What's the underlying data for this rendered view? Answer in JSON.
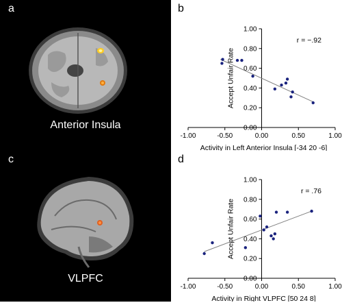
{
  "panels": {
    "a": {
      "label": "a",
      "caption": "Anterior Insula"
    },
    "b": {
      "label": "b"
    },
    "c": {
      "label": "c",
      "caption": "VLPFC"
    },
    "d": {
      "label": "d"
    }
  },
  "colors": {
    "background": "#000000",
    "activation_hot": "#ffcc22",
    "activation_warm": "#e07a10",
    "point": "#1a237e",
    "line": "#808080"
  },
  "chart_data": [
    {
      "type": "scatter",
      "title": "",
      "xlabel": "Activity in Left Anterior Insula [-34 20 -6]",
      "ylabel": "Accept Unfair Rate",
      "xlim": [
        -1.0,
        1.0
      ],
      "ylim": [
        0.0,
        1.0
      ],
      "xticks": [
        "-1.00",
        "-0.50",
        "0.00",
        "0.50",
        "1.00"
      ],
      "yticks": [
        "0.00",
        "0.20",
        "0.40",
        "0.60",
        "0.80",
        "1.00"
      ],
      "annotation": "r = −.92",
      "grid": false,
      "points": [
        {
          "x": -0.54,
          "y": 0.65
        },
        {
          "x": -0.53,
          "y": 0.69
        },
        {
          "x": -0.33,
          "y": 0.68
        },
        {
          "x": -0.27,
          "y": 0.68
        },
        {
          "x": -0.12,
          "y": 0.52
        },
        {
          "x": 0.18,
          "y": 0.39
        },
        {
          "x": 0.27,
          "y": 0.43
        },
        {
          "x": 0.33,
          "y": 0.45
        },
        {
          "x": 0.35,
          "y": 0.49
        },
        {
          "x": 0.4,
          "y": 0.31
        },
        {
          "x": 0.42,
          "y": 0.36
        },
        {
          "x": 0.7,
          "y": 0.25
        }
      ],
      "fit_line": {
        "x": [
          -0.56,
          0.7
        ],
        "y": [
          0.69,
          0.26
        ]
      }
    },
    {
      "type": "scatter",
      "title": "",
      "xlabel": "Activity in Right VLPFC [50 24 8]",
      "ylabel": "Accept Unfair Rate",
      "xlim": [
        -1.0,
        1.0
      ],
      "ylim": [
        0.0,
        1.0
      ],
      "xticks": [
        "-1.00",
        "-0.50",
        "0.00",
        "0.50",
        "1.00"
      ],
      "yticks": [
        "0.00",
        "0.20",
        "0.40",
        "0.60",
        "0.80",
        "1.00"
      ],
      "annotation": "r = .76",
      "grid": false,
      "points": [
        {
          "x": -0.78,
          "y": 0.25
        },
        {
          "x": -0.67,
          "y": 0.36
        },
        {
          "x": -0.02,
          "y": 0.63
        },
        {
          "x": 0.03,
          "y": 0.49
        },
        {
          "x": 0.07,
          "y": 0.52
        },
        {
          "x": 0.13,
          "y": 0.43
        },
        {
          "x": 0.16,
          "y": 0.4
        },
        {
          "x": 0.18,
          "y": 0.45
        },
        {
          "x": 0.2,
          "y": 0.67
        },
        {
          "x": 0.35,
          "y": 0.67
        },
        {
          "x": 0.68,
          "y": 0.68
        },
        {
          "x": -0.22,
          "y": 0.31
        }
      ],
      "fit_line": {
        "x": [
          -0.78,
          0.68
        ],
        "y": [
          0.27,
          0.68
        ]
      }
    }
  ]
}
